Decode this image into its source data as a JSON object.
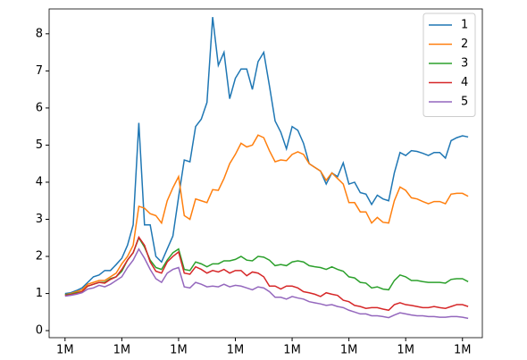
{
  "chart_data": {
    "type": "line",
    "x": [
      0,
      1,
      2,
      3,
      4,
      5,
      6,
      7,
      8,
      9,
      10,
      11,
      12,
      13,
      14,
      15,
      16,
      17,
      18,
      19,
      20,
      21,
      22,
      23,
      24,
      25,
      26,
      27,
      28,
      29,
      30,
      31,
      32,
      33,
      34,
      35,
      36,
      37,
      38,
      39,
      40,
      41,
      42,
      43,
      44,
      45,
      46,
      47,
      48,
      49,
      50,
      51,
      52,
      53,
      54,
      55,
      56,
      57,
      58,
      59,
      60,
      61,
      62,
      63,
      64,
      65,
      66,
      67,
      68,
      69,
      70,
      71
    ],
    "series": [
      {
        "name": "1",
        "color": "#1f77b4",
        "values": [
          1.0,
          1.02,
          1.08,
          1.15,
          1.3,
          1.45,
          1.5,
          1.62,
          1.62,
          1.78,
          1.95,
          2.3,
          2.85,
          5.6,
          2.85,
          2.85,
          2.0,
          1.85,
          2.2,
          2.55,
          3.6,
          4.6,
          4.55,
          5.5,
          5.7,
          6.15,
          8.45,
          7.15,
          7.5,
          6.25,
          6.8,
          7.05,
          7.05,
          6.5,
          7.25,
          7.5,
          6.6,
          5.65,
          5.35,
          4.9,
          5.5,
          5.4,
          5.05,
          4.5,
          4.4,
          4.3,
          3.95,
          4.25,
          4.15,
          4.52,
          3.95,
          4.0,
          3.72,
          3.68,
          3.4,
          3.65,
          3.55,
          3.5,
          4.25,
          4.8,
          4.72,
          4.85,
          4.83,
          4.78,
          4.72,
          4.8,
          4.8,
          4.65,
          5.12,
          5.2,
          5.25,
          5.22
        ]
      },
      {
        "name": "2",
        "color": "#ff7f0e",
        "values": [
          0.97,
          1.0,
          1.05,
          1.1,
          1.25,
          1.3,
          1.35,
          1.35,
          1.45,
          1.55,
          1.8,
          2.0,
          2.3,
          3.35,
          3.3,
          3.15,
          3.1,
          2.9,
          3.5,
          3.85,
          4.15,
          3.1,
          3.0,
          3.55,
          3.5,
          3.45,
          3.8,
          3.78,
          4.1,
          4.5,
          4.75,
          5.05,
          4.95,
          5.0,
          5.27,
          5.2,
          4.85,
          4.55,
          4.6,
          4.58,
          4.75,
          4.82,
          4.75,
          4.5,
          4.4,
          4.3,
          4.05,
          4.25,
          4.1,
          3.95,
          3.45,
          3.45,
          3.2,
          3.2,
          2.9,
          3.05,
          2.92,
          2.9,
          3.5,
          3.87,
          3.78,
          3.58,
          3.55,
          3.48,
          3.42,
          3.48,
          3.48,
          3.42,
          3.68,
          3.7,
          3.7,
          3.62
        ]
      },
      {
        "name": "3",
        "color": "#2ca02c",
        "values": [
          0.97,
          0.98,
          1.02,
          1.05,
          1.2,
          1.25,
          1.3,
          1.3,
          1.4,
          1.45,
          1.6,
          1.9,
          2.1,
          2.5,
          2.25,
          1.9,
          1.7,
          1.65,
          1.9,
          2.1,
          2.2,
          1.65,
          1.62,
          1.85,
          1.8,
          1.72,
          1.8,
          1.8,
          1.88,
          1.88,
          1.92,
          2.0,
          1.9,
          1.88,
          2.0,
          1.98,
          1.9,
          1.75,
          1.78,
          1.75,
          1.85,
          1.88,
          1.85,
          1.75,
          1.72,
          1.7,
          1.65,
          1.72,
          1.65,
          1.6,
          1.45,
          1.42,
          1.3,
          1.28,
          1.15,
          1.18,
          1.12,
          1.1,
          1.35,
          1.5,
          1.45,
          1.35,
          1.35,
          1.32,
          1.3,
          1.3,
          1.3,
          1.28,
          1.38,
          1.4,
          1.4,
          1.32
        ]
      },
      {
        "name": "4",
        "color": "#d62728",
        "values": [
          0.95,
          0.97,
          1.0,
          1.05,
          1.2,
          1.25,
          1.3,
          1.28,
          1.38,
          1.45,
          1.65,
          1.9,
          2.1,
          2.52,
          2.3,
          1.85,
          1.6,
          1.55,
          1.85,
          2.0,
          2.12,
          1.55,
          1.52,
          1.72,
          1.65,
          1.55,
          1.62,
          1.58,
          1.65,
          1.55,
          1.62,
          1.62,
          1.48,
          1.58,
          1.55,
          1.45,
          1.2,
          1.2,
          1.12,
          1.2,
          1.2,
          1.15,
          1.05,
          1.02,
          0.98,
          0.92,
          1.02,
          0.98,
          0.95,
          0.82,
          0.78,
          0.68,
          0.65,
          0.6,
          0.62,
          0.62,
          0.58,
          0.55,
          0.7,
          0.75,
          0.7,
          0.68,
          0.65,
          0.62,
          0.62,
          0.65,
          0.62,
          0.6,
          0.65,
          0.7,
          0.7,
          0.65
        ]
      },
      {
        "name": "5",
        "color": "#9467bd",
        "values": [
          0.93,
          0.95,
          0.98,
          1.02,
          1.12,
          1.15,
          1.22,
          1.18,
          1.25,
          1.35,
          1.45,
          1.7,
          1.9,
          2.2,
          1.95,
          1.65,
          1.4,
          1.3,
          1.55,
          1.65,
          1.7,
          1.18,
          1.15,
          1.3,
          1.25,
          1.18,
          1.2,
          1.18,
          1.25,
          1.18,
          1.22,
          1.2,
          1.15,
          1.1,
          1.18,
          1.15,
          1.05,
          0.9,
          0.9,
          0.85,
          0.92,
          0.88,
          0.85,
          0.78,
          0.75,
          0.72,
          0.68,
          0.7,
          0.65,
          0.62,
          0.55,
          0.5,
          0.45,
          0.45,
          0.4,
          0.4,
          0.38,
          0.35,
          0.42,
          0.48,
          0.45,
          0.42,
          0.4,
          0.4,
          0.38,
          0.38,
          0.36,
          0.36,
          0.38,
          0.38,
          0.36,
          0.33
        ]
      }
    ],
    "xlim": [
      -2.8,
      73.5
    ],
    "xticks": [
      {
        "value": 0,
        "label": "1M"
      },
      {
        "value": 10,
        "label": "1M"
      },
      {
        "value": 20,
        "label": "1M"
      },
      {
        "value": 30,
        "label": "1M"
      },
      {
        "value": 40,
        "label": "1M"
      },
      {
        "value": 50,
        "label": "1M"
      },
      {
        "value": 60,
        "label": "1M"
      },
      {
        "value": 70,
        "label": "1M"
      }
    ],
    "ylim": [
      -0.19,
      8.67
    ],
    "yticks": [
      0,
      1,
      2,
      3,
      4,
      5,
      6,
      7,
      8
    ],
    "legend": "upper right"
  }
}
